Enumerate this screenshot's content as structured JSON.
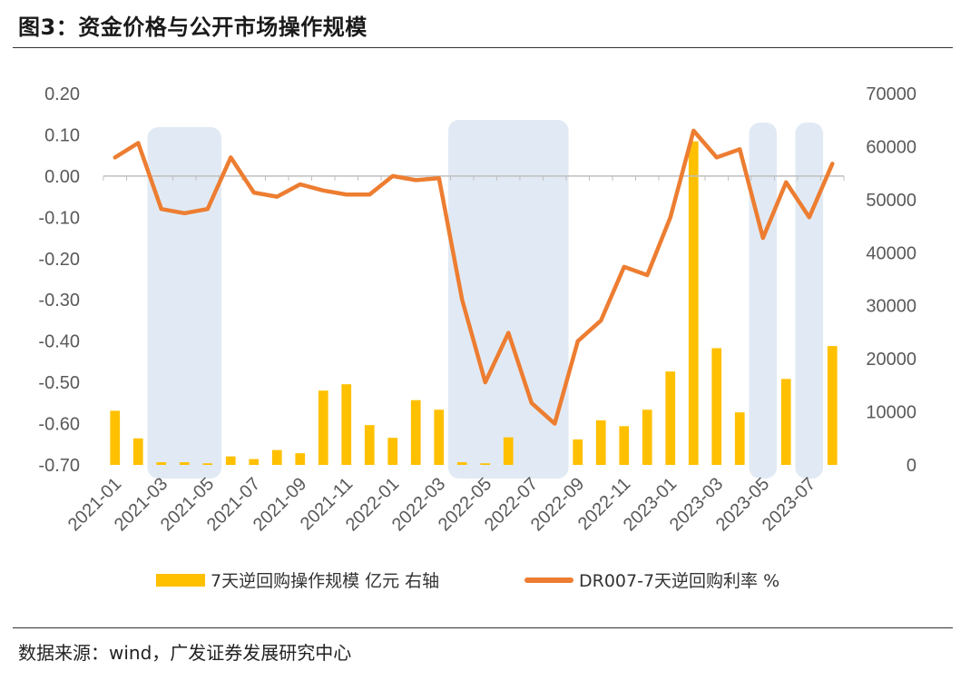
{
  "figure": {
    "title": "图3：资金价格与公开市场操作规模",
    "source": "数据来源：wind，广发证券发展研究中心"
  },
  "colors": {
    "bar": "#FFC000",
    "line": "#ED7D31",
    "shade": "#DCE6F2"
  },
  "chart_data": {
    "type": "bar+line",
    "categories": [
      "2021-01",
      "2021-02",
      "2021-03",
      "2021-04",
      "2021-05",
      "2021-06",
      "2021-07",
      "2021-08",
      "2021-09",
      "2021-10",
      "2021-11",
      "2021-12",
      "2022-01",
      "2022-02",
      "2022-03",
      "2022-04",
      "2022-05",
      "2022-06",
      "2022-07",
      "2022-08",
      "2022-09",
      "2022-10",
      "2022-11",
      "2022-12",
      "2023-01",
      "2023-02",
      "2023-03",
      "2023-04",
      "2023-05",
      "2023-06",
      "2023-07",
      "2023-08"
    ],
    "x_tick_labels": [
      "2021-01",
      "2021-03",
      "2021-05",
      "2021-07",
      "2021-09",
      "2021-11",
      "2022-01",
      "2022-03",
      "2022-05",
      "2022-07",
      "2022-09",
      "2022-11",
      "2023-01",
      "2023-03",
      "2023-05",
      "2023-07"
    ],
    "series": [
      {
        "name": "7天逆回购操作规模 亿元 右轴",
        "type": "bar",
        "axis": "right",
        "values": [
          10200,
          5000,
          500,
          500,
          300,
          1600,
          1100,
          2800,
          2200,
          14000,
          15200,
          7500,
          5100,
          12200,
          10400,
          500,
          300,
          5200,
          0,
          0,
          4800,
          8400,
          7300,
          10400,
          17600,
          61000,
          22000,
          9900,
          0,
          16200,
          0,
          22400
        ]
      },
      {
        "name": "DR007-7天逆回购利率 %",
        "type": "line",
        "axis": "left",
        "values": [
          0.045,
          0.08,
          -0.08,
          -0.09,
          -0.08,
          0.045,
          -0.04,
          -0.05,
          -0.02,
          -0.035,
          -0.045,
          -0.045,
          0.0,
          -0.01,
          -0.005,
          -0.3,
          -0.5,
          -0.38,
          -0.55,
          -0.6,
          -0.4,
          -0.35,
          -0.22,
          -0.24,
          -0.1,
          0.11,
          0.045,
          0.065,
          -0.15,
          -0.015,
          -0.1,
          0.03
        ]
      }
    ],
    "y_left": {
      "min": -0.7,
      "max": 0.2,
      "step": 0.1,
      "tick_labels": [
        "-0.70",
        "-0.60",
        "-0.50",
        "-0.40",
        "-0.30",
        "-0.20",
        "-0.10",
        "0.00",
        "0.10",
        "0.20"
      ]
    },
    "y_right": {
      "min": 0,
      "max": 70000,
      "step": 10000,
      "tick_labels": [
        "0",
        "10000",
        "20000",
        "30000",
        "40000",
        "50000",
        "60000",
        "70000"
      ]
    },
    "shaded_periods": [
      {
        "from": "2021-03",
        "to": "2021-05"
      },
      {
        "from": "2022-04",
        "to": "2022-08"
      },
      {
        "from": "2023-05",
        "to": "2023-05"
      },
      {
        "from": "2023-07",
        "to": "2023-07"
      }
    ],
    "legend": {
      "position": "bottom"
    },
    "grid": false
  }
}
